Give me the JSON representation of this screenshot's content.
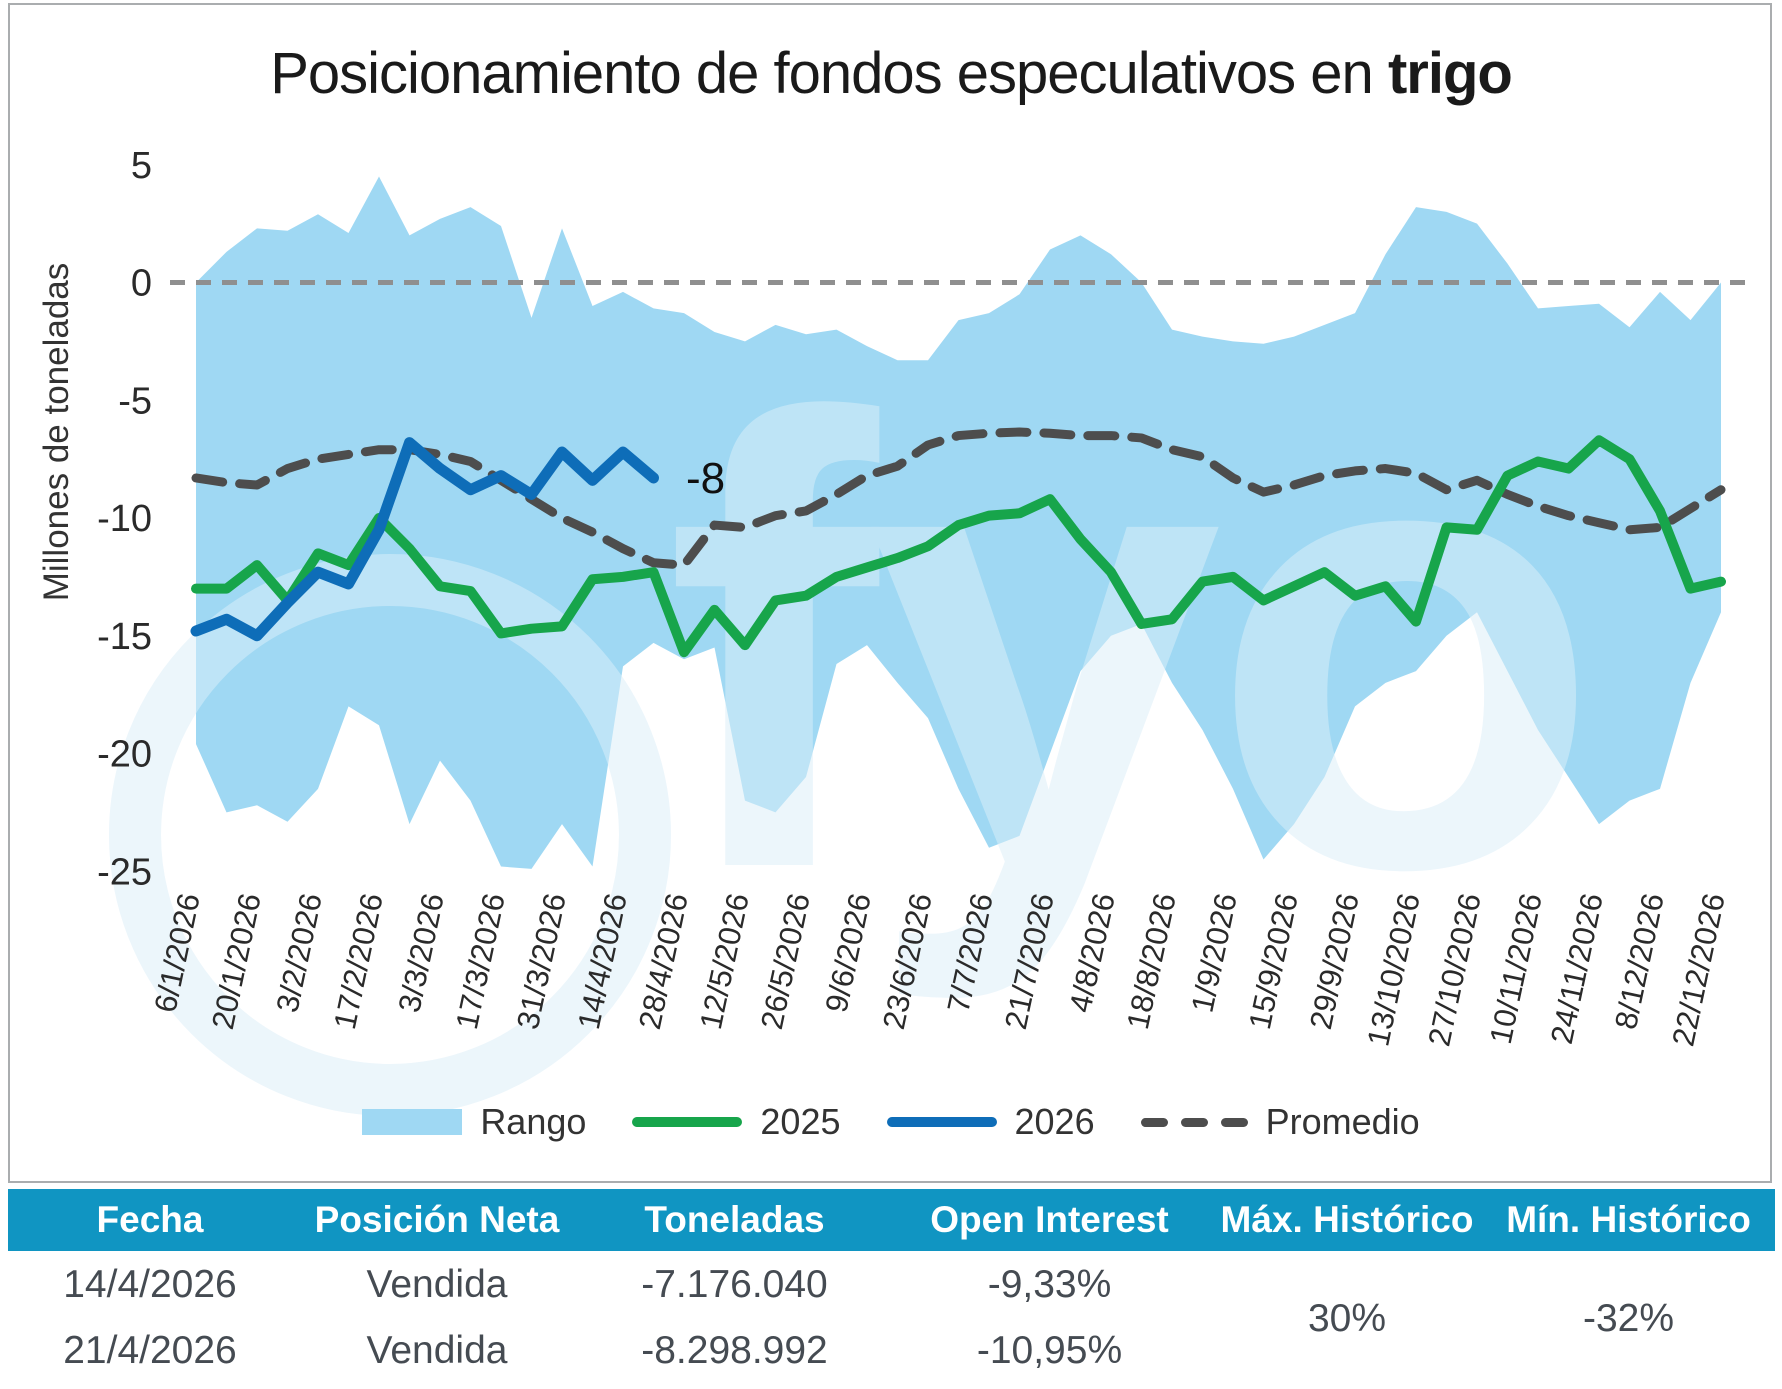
{
  "header": {
    "title_regular": "Posicionamiento de fondos especulativos en ",
    "title_bold": "trigo"
  },
  "watermark": {
    "text": "fyo"
  },
  "colors": {
    "band": "#9fd8f3",
    "line_2025": "#17a54b",
    "line_2026": "#0e6db8",
    "promedio": "#4d4d4d",
    "zero_line": "#8f8f8f",
    "axis_text": "#2a2a2a",
    "table_header_bg": "#1095c2",
    "table_text": "#454b52",
    "watermark_blue": "#e4f2fa"
  },
  "legend": [
    {
      "label": "Rango",
      "type": "band",
      "color": "#9fd8f3"
    },
    {
      "label": "2025",
      "type": "line",
      "color": "#17a54b"
    },
    {
      "label": "2026",
      "type": "line",
      "color": "#0e6db8"
    },
    {
      "label": "Promedio",
      "type": "dash",
      "color": "#4d4d4d"
    }
  ],
  "table": {
    "headers": [
      "Fecha",
      "Posición Neta",
      "Toneladas",
      "Open Interest",
      "Máx. Histórico",
      "Mín. Histórico"
    ],
    "rows": [
      {
        "fecha": "14/4/2026",
        "posicion_neta": "Vendida",
        "toneladas": "-7.176.040",
        "open_interest": "-9,33%"
      },
      {
        "fecha": "21/4/2026",
        "posicion_neta": "Vendida",
        "toneladas": "-8.298.992",
        "open_interest": "-10,95%"
      }
    ],
    "max_historico": "30%",
    "min_historico": "-32%"
  },
  "chart_data": {
    "type": "line",
    "title": "Posicionamiento de fondos especulativos en trigo",
    "ylabel": "Millones de toneladas",
    "xlabel": "",
    "ylim": [
      -25,
      5
    ],
    "yticks": [
      5,
      0,
      -5,
      -10,
      -15,
      -20,
      -25
    ],
    "grid": false,
    "zero_line": 0,
    "legend_position": "bottom",
    "x_tick_labels": [
      "6/1/2026",
      "20/1/2026",
      "3/2/2026",
      "17/2/2026",
      "3/3/2026",
      "17/3/2026",
      "31/3/2026",
      "14/4/2026",
      "28/4/2026",
      "12/5/2026",
      "26/5/2026",
      "9/6/2026",
      "23/6/2026",
      "7/7/2026",
      "21/7/2026",
      "4/8/2026",
      "18/8/2026",
      "1/9/2026",
      "15/9/2026",
      "29/9/2026",
      "13/10/2026",
      "27/10/2026",
      "10/11/2026",
      "24/11/2026",
      "8/12/2026",
      "22/12/2026"
    ],
    "weeks_total": 51,
    "series": [
      {
        "name": "Rango",
        "type": "area-band",
        "color": "#9fd8f3",
        "upper": [
          0,
          1.3,
          2.3,
          2.2,
          2.9,
          2.1,
          4.5,
          2.0,
          2.7,
          3.2,
          2.4,
          -1.5,
          2.3,
          -1.0,
          -0.4,
          -1.1,
          -1.3,
          -2.1,
          -2.5,
          -1.8,
          -2.2,
          -2.0,
          -2.7,
          -3.3,
          -3.3,
          -1.6,
          -1.3,
          -0.5,
          1.4,
          2.0,
          1.2,
          0.0,
          -2.0,
          -2.3,
          -2.5,
          -2.6,
          -2.3,
          -1.8,
          -1.3,
          1.2,
          3.2,
          3.0,
          2.5,
          0.8,
          -1.1,
          -1.0,
          -0.9,
          -1.9,
          -0.4,
          -1.6,
          0.0
        ],
        "lower": [
          -19.6,
          -22.5,
          -22.2,
          -22.9,
          -21.5,
          -18.0,
          -18.8,
          -23.0,
          -20.3,
          -22.0,
          -24.8,
          -24.9,
          -23.0,
          -24.8,
          -16.3,
          -15.3,
          -16.0,
          -15.5,
          -22.0,
          -22.5,
          -21.0,
          -16.2,
          -15.4,
          -17.0,
          -18.5,
          -21.5,
          -24.0,
          -23.5,
          -20.0,
          -16.5,
          -15.0,
          -14.5,
          -17.0,
          -19.0,
          -21.5,
          -24.5,
          -23.0,
          -21.0,
          -18.0,
          -17.0,
          -16.5,
          -15.0,
          -14.0,
          -16.5,
          -19.0,
          -21.0,
          -23.0,
          -22.0,
          -21.5,
          -17.0,
          -14.0
        ]
      },
      {
        "name": "2025",
        "type": "line",
        "color": "#17a54b",
        "values": [
          -13.0,
          -13.0,
          -12.0,
          -13.5,
          -11.5,
          -12.0,
          -10.0,
          -11.3,
          -12.9,
          -13.1,
          -14.9,
          -14.7,
          -14.6,
          -12.6,
          -12.5,
          -12.3,
          -15.7,
          -13.9,
          -15.4,
          -13.5,
          -13.3,
          -12.5,
          -12.1,
          -11.7,
          -11.2,
          -10.3,
          -9.9,
          -9.8,
          -9.2,
          -10.9,
          -12.3,
          -14.5,
          -14.3,
          -12.7,
          -12.5,
          -13.5,
          -12.9,
          -12.3,
          -13.3,
          -12.9,
          -14.4,
          -10.4,
          -10.5,
          -8.2,
          -7.6,
          -7.9,
          -6.7,
          -7.5,
          -9.7,
          -13.0,
          -12.7
        ]
      },
      {
        "name": "2026",
        "type": "line",
        "color": "#0e6db8",
        "values": [
          -14.8,
          -14.3,
          -15.0,
          -13.6,
          -12.3,
          -12.8,
          -10.5,
          -6.8,
          -7.9,
          -8.8,
          -8.2,
          -9.0,
          -7.2,
          -8.4,
          -7.2,
          -8.3
        ]
      },
      {
        "name": "Promedio",
        "type": "line",
        "dashed": true,
        "color": "#4d4d4d",
        "values": [
          -8.3,
          -8.5,
          -8.6,
          -7.9,
          -7.5,
          -7.3,
          -7.1,
          -7.1,
          -7.3,
          -7.6,
          -8.4,
          -9.2,
          -10.0,
          -10.6,
          -11.3,
          -11.9,
          -12.0,
          -10.3,
          -10.4,
          -9.9,
          -9.7,
          -9.0,
          -8.2,
          -7.8,
          -6.9,
          -6.5,
          -6.4,
          -6.35,
          -6.4,
          -6.5,
          -6.5,
          -6.6,
          -7.1,
          -7.4,
          -8.3,
          -8.9,
          -8.6,
          -8.2,
          -8.0,
          -7.9,
          -8.1,
          -8.8,
          -8.4,
          -9.0,
          -9.5,
          -9.9,
          -10.2,
          -10.5,
          -10.4,
          -9.6,
          -8.8
        ]
      }
    ],
    "annotations": [
      {
        "text": "-8",
        "week": 15,
        "value": -8.3
      }
    ]
  }
}
